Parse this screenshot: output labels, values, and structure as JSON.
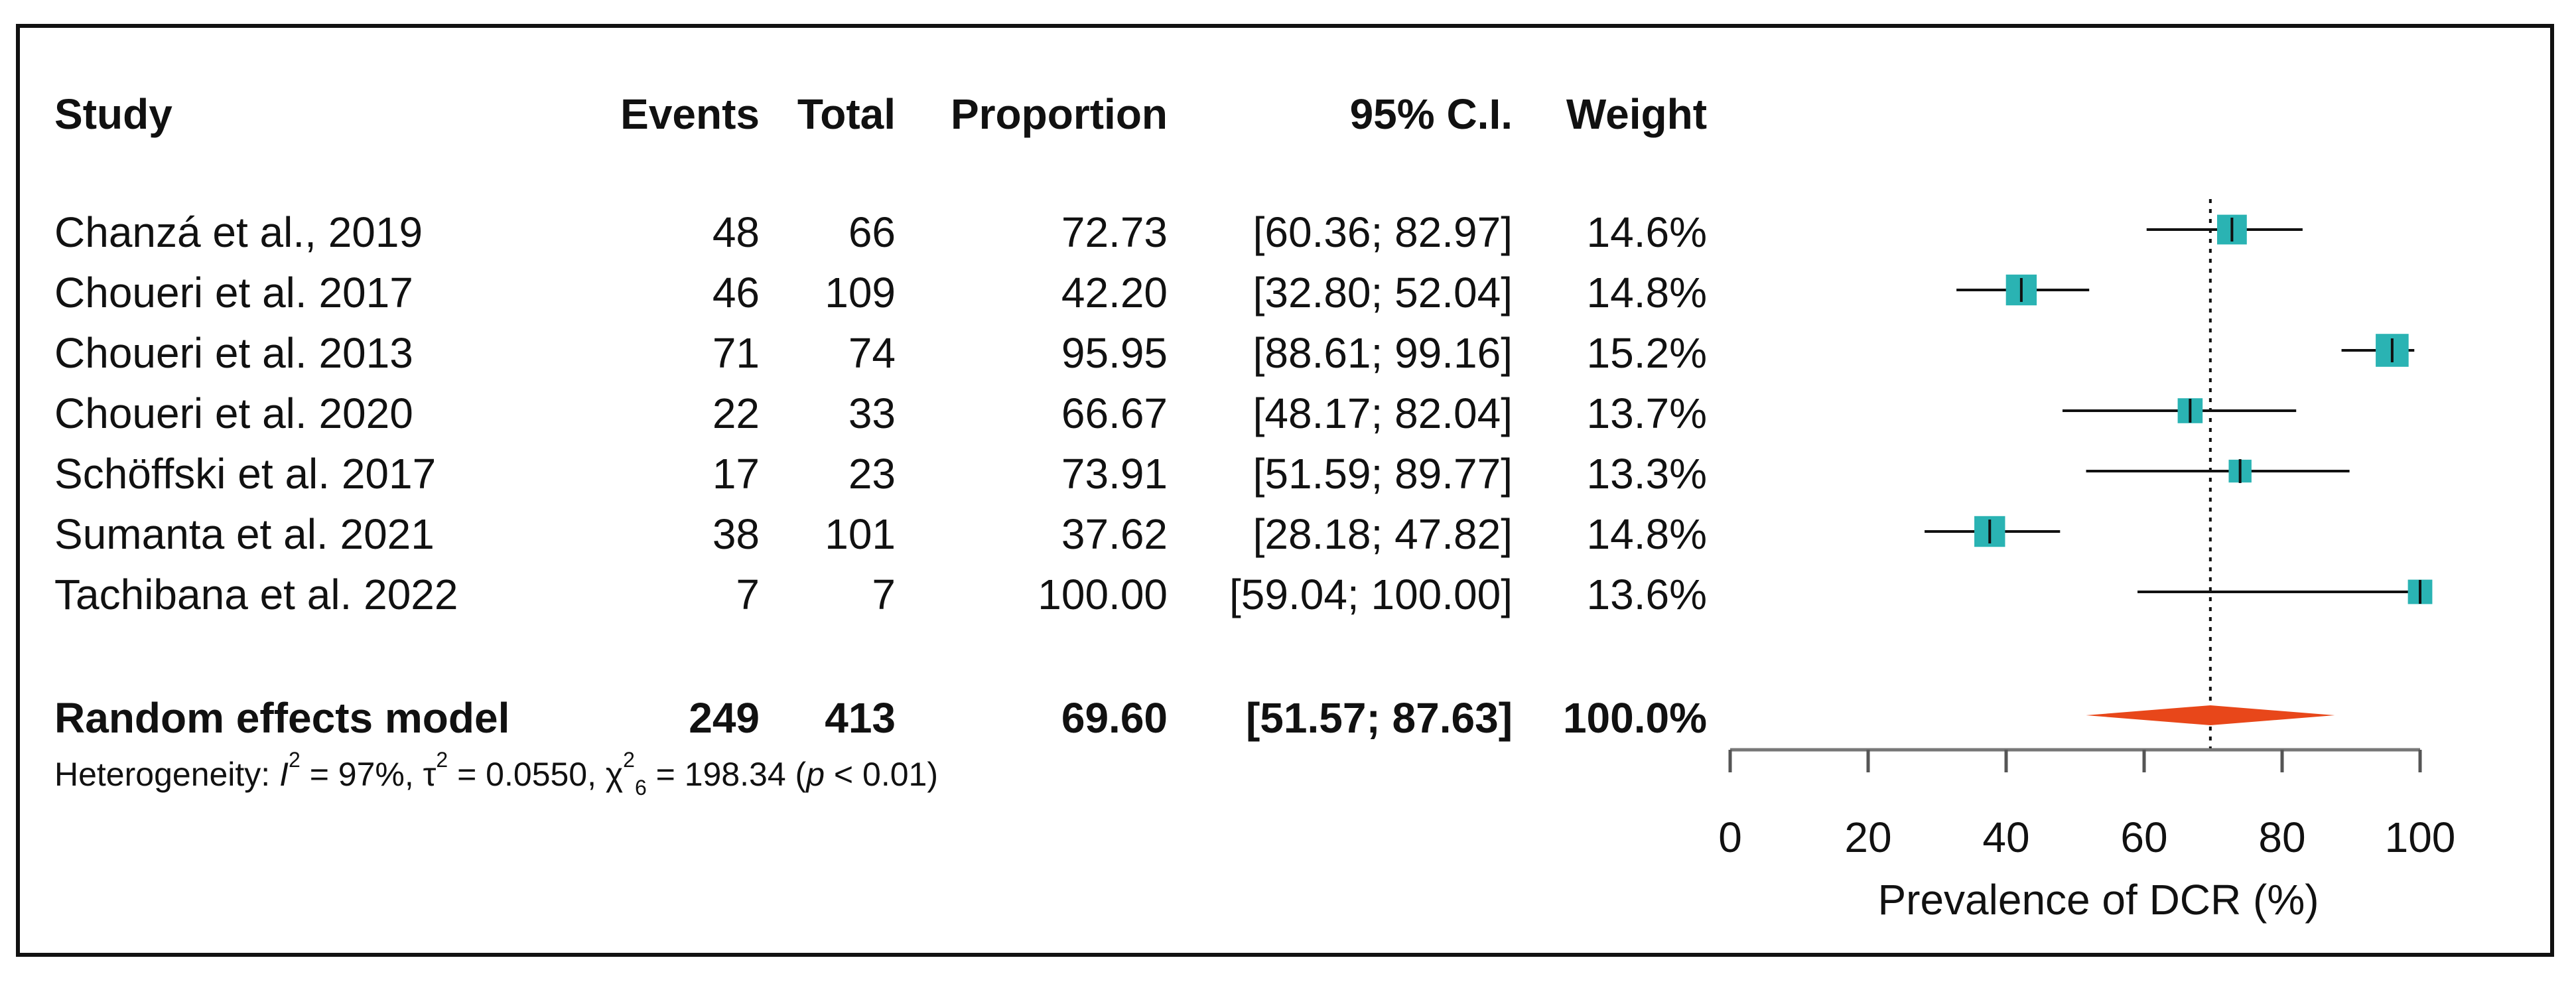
{
  "columns": {
    "study": "Study",
    "events": "Events",
    "total": "Total",
    "proportion": "Proportion",
    "ci": "95% C.I.",
    "weight": "Weight"
  },
  "studies": [
    {
      "name": "Chanzá et al., 2019",
      "events": "48",
      "total": "66",
      "proportion": "72.73",
      "ci": "[60.36;  82.97]",
      "weight": "14.6%"
    },
    {
      "name": "Choueri et al.  2017",
      "events": "46",
      "total": "109",
      "proportion": "42.20",
      "ci": "[32.80;  52.04]",
      "weight": "14.8%"
    },
    {
      "name": "Choueri et al. 2013",
      "events": "71",
      "total": "74",
      "proportion": "95.95",
      "ci": "[88.61;  99.16]",
      "weight": "15.2%"
    },
    {
      "name": "Choueri et al. 2020",
      "events": "22",
      "total": "33",
      "proportion": "66.67",
      "ci": "[48.17;  82.04]",
      "weight": "13.7%"
    },
    {
      "name": "Schöffski et al. 2017",
      "events": "17",
      "total": "23",
      "proportion": "73.91",
      "ci": "[51.59;  89.77]",
      "weight": "13.3%"
    },
    {
      "name": "Sumanta et al. 2021",
      "events": "38",
      "total": "101",
      "proportion": "37.62",
      "ci": "[28.18;  47.82]",
      "weight": "14.8%"
    },
    {
      "name": "Tachibana et al. 2022",
      "events": "7",
      "total": "7",
      "proportion": "100.00",
      "ci": "[59.04; 100.00]",
      "weight": "13.6%"
    }
  ],
  "summary": {
    "name": "Random effects model",
    "events": "249",
    "total": "413",
    "proportion": "69.60",
    "ci": "[51.57;  87.63]",
    "weight": "100.0%"
  },
  "heterogeneity": {
    "prefix": "Heterogeneity: ",
    "i2_symbol": "I",
    "i2_text": " = 97%, ",
    "tau_symbol": "τ",
    "tau_text": " = 0.0550, ",
    "chi_symbol": "χ",
    "chi_df": "6",
    "chi_text": " = 198.34 (",
    "p_symbol": "p",
    "p_text": " < 0.01)"
  },
  "colors": {
    "box": "#2ab3b3",
    "diamond": "#e8471a",
    "line": "#111111"
  },
  "chart_data": {
    "type": "forest",
    "xlabel": "Prevalence of DCR (%)",
    "xlim": [
      0,
      100
    ],
    "xticks": [
      "0",
      "20",
      "40",
      "60",
      "80",
      "100"
    ],
    "reference_line": 69.6,
    "studies": [
      {
        "est": 72.73,
        "lo": 60.36,
        "hi": 82.97,
        "weight": 14.6
      },
      {
        "est": 42.2,
        "lo": 32.8,
        "hi": 52.04,
        "weight": 14.8
      },
      {
        "est": 95.95,
        "lo": 88.61,
        "hi": 99.16,
        "weight": 15.2
      },
      {
        "est": 66.67,
        "lo": 48.17,
        "hi": 82.04,
        "weight": 13.7
      },
      {
        "est": 73.91,
        "lo": 51.59,
        "hi": 89.77,
        "weight": 13.3
      },
      {
        "est": 37.62,
        "lo": 28.18,
        "hi": 47.82,
        "weight": 14.8
      },
      {
        "est": 100.0,
        "lo": 59.04,
        "hi": 100.0,
        "weight": 13.6
      }
    ],
    "summary": {
      "est": 69.6,
      "lo": 51.57,
      "hi": 87.63
    }
  }
}
